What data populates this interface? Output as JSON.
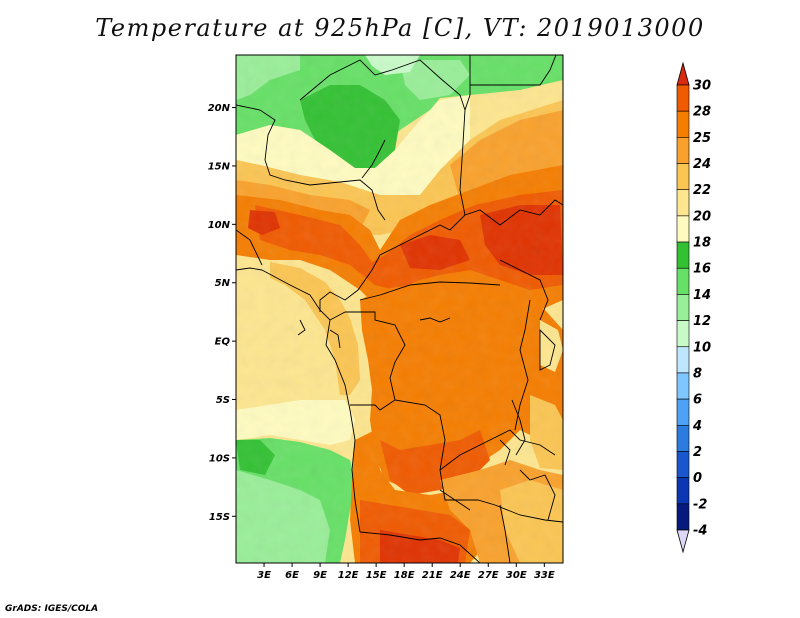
{
  "title": "Temperature at 925hPa [C], VT: 2019013000",
  "credit": "GrADS: IGES/COLA",
  "map": {
    "lat_labels": [
      "20N",
      "15N",
      "10N",
      "5N",
      "EQ",
      "5S",
      "10S",
      "15S"
    ],
    "lat_values": [
      20,
      15,
      10,
      5,
      0,
      -5,
      -10,
      -15
    ],
    "lon_labels": [
      "3E",
      "6E",
      "9E",
      "12E",
      "15E",
      "18E",
      "21E",
      "24E",
      "27E",
      "30E",
      "33E"
    ],
    "lon_values": [
      3,
      6,
      9,
      12,
      15,
      18,
      21,
      24,
      27,
      30,
      33
    ],
    "lon_range": [
      0,
      35
    ],
    "lat_range": [
      -19,
      24.5
    ]
  },
  "colorbar": {
    "levels": [
      "30",
      "28",
      "25",
      "24",
      "22",
      "20",
      "18",
      "16",
      "14",
      "12",
      "10",
      "8",
      "6",
      "4",
      "2",
      "0",
      "-2",
      "-4"
    ],
    "colors": [
      "#e03200",
      "#f05a00",
      "#f57d00",
      "#f9a12c",
      "#fbc552",
      "#fde68f",
      "#fffbc0",
      "#33c133",
      "#66e066",
      "#99ee99",
      "#c8fac8",
      "#bfe6ff",
      "#7fc6ff",
      "#4ea2f5",
      "#2c7ce0",
      "#1a57cf",
      "#0b36b4",
      "#061a7e"
    ],
    "top_color": "#d92a0f",
    "bottom_color": "#ddd8f5"
  }
}
